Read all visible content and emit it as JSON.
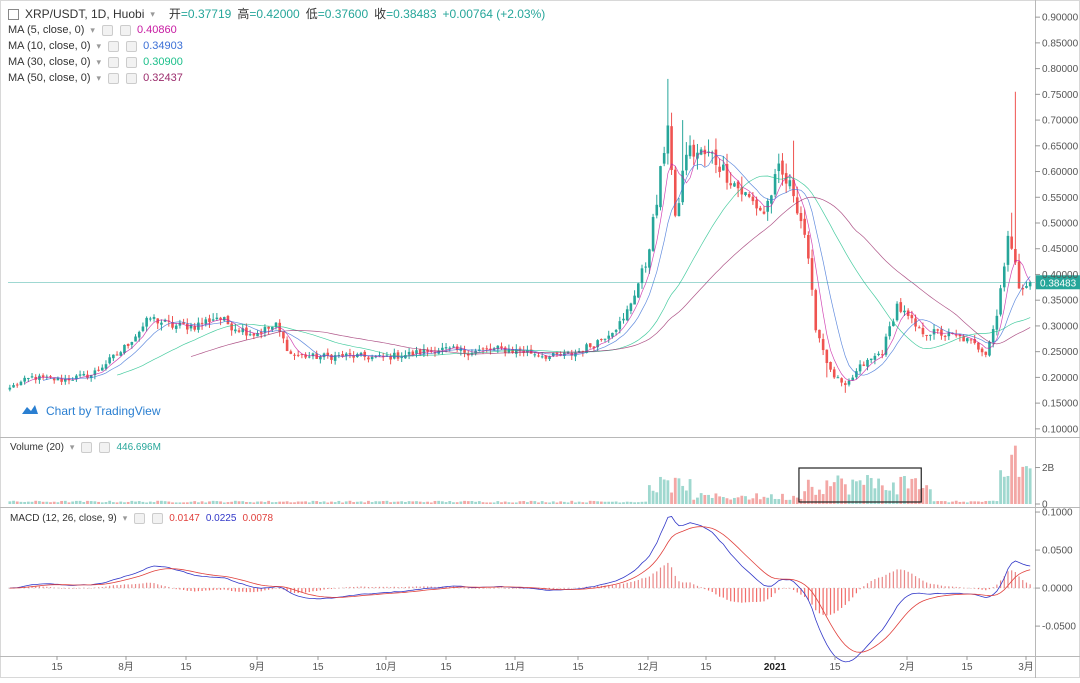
{
  "header": {
    "symbol": "XRP/USDT, 1D, Huobi",
    "open_label": "开",
    "open": "=0.37719",
    "high_label": "高",
    "high": "=0.42000",
    "low_label": "低",
    "low": "=0.37600",
    "close_label": "收",
    "close": "=0.38483",
    "change": "+0.00764 (+2.03%)"
  },
  "ma": [
    {
      "label": "MA (5, close, 0)",
      "value": "0.40860",
      "color": "#c71aa2"
    },
    {
      "label": "MA (10, close, 0)",
      "value": "0.34903",
      "color": "#3b6fd6"
    },
    {
      "label": "MA (30, close, 0)",
      "value": "0.30900",
      "color": "#1bbf8a"
    },
    {
      "label": "MA (50, close, 0)",
      "value": "0.32437",
      "color": "#9b2c6c"
    }
  ],
  "branding": {
    "label": "Chart by TradingView"
  },
  "volume": {
    "label": "Volume (20)",
    "value": "446.696M",
    "ticks": [
      "2B",
      "0"
    ]
  },
  "macd": {
    "label": "MACD (12, 26, close, 9)",
    "values": [
      "0.0147",
      "0.0225",
      "0.0078"
    ],
    "colors": [
      "#e0403c",
      "#3238c8",
      "#e0403c"
    ],
    "ticks": [
      "0.1000",
      "0.0500",
      "0.0000",
      "-0.0500"
    ]
  },
  "price_axis": {
    "ticks": [
      "0.90000",
      "0.85000",
      "0.80000",
      "0.75000",
      "0.70000",
      "0.65000",
      "0.60000",
      "0.55000",
      "0.50000",
      "0.45000",
      "0.40000",
      "0.35000",
      "0.30000",
      "0.25000",
      "0.20000",
      "0.15000",
      "0.10000"
    ],
    "last": "0.38483"
  },
  "time_axis": {
    "labels": [
      "15",
      "8月",
      "15",
      "9月",
      "15",
      "10月",
      "15",
      "11月",
      "15",
      "12月",
      "15",
      "2021",
      "15",
      "2月",
      "15",
      "3月"
    ]
  },
  "chart_data": {
    "type": "candlestick",
    "symbol": "XRP/USDT",
    "interval": "1D",
    "exchange": "Huobi",
    "price_range": [
      0.09,
      0.91
    ],
    "up_color": "#26a69a",
    "down_color": "#ef5350",
    "anchors": [
      [
        0,
        0.18
      ],
      [
        6,
        0.2
      ],
      [
        14,
        0.195
      ],
      [
        22,
        0.205
      ],
      [
        30,
        0.25
      ],
      [
        38,
        0.315
      ],
      [
        44,
        0.3
      ],
      [
        50,
        0.3
      ],
      [
        56,
        0.318
      ],
      [
        60,
        0.3
      ],
      [
        66,
        0.285
      ],
      [
        72,
        0.3
      ],
      [
        76,
        0.245
      ],
      [
        82,
        0.24
      ],
      [
        92,
        0.242
      ],
      [
        100,
        0.238
      ],
      [
        108,
        0.245
      ],
      [
        116,
        0.255
      ],
      [
        124,
        0.25
      ],
      [
        132,
        0.255
      ],
      [
        140,
        0.25
      ],
      [
        146,
        0.24
      ],
      [
        152,
        0.245
      ],
      [
        158,
        0.265
      ],
      [
        166,
        0.31
      ],
      [
        172,
        0.42
      ],
      [
        175,
        0.54
      ],
      [
        178,
        0.7
      ],
      [
        180,
        0.5
      ],
      [
        183,
        0.64
      ],
      [
        190,
        0.63
      ],
      [
        198,
        0.56
      ],
      [
        204,
        0.52
      ],
      [
        208,
        0.6
      ],
      [
        212,
        0.56
      ],
      [
        215,
        0.48
      ],
      [
        218,
        0.3
      ],
      [
        222,
        0.21
      ],
      [
        226,
        0.18
      ],
      [
        230,
        0.22
      ],
      [
        236,
        0.25
      ],
      [
        240,
        0.34
      ],
      [
        246,
        0.29
      ],
      [
        252,
        0.285
      ],
      [
        258,
        0.275
      ],
      [
        264,
        0.25
      ],
      [
        267,
        0.32
      ],
      [
        270,
        0.48
      ],
      [
        273,
        0.38
      ],
      [
        276,
        0.385
      ]
    ],
    "volume_bars_note": "daily volume bars, peak ~3.2B near 2月",
    "macd_range": [
      -0.088,
      0.104
    ],
    "annotation": "box over volume from mid-December 2020 to mid-January 2021"
  }
}
